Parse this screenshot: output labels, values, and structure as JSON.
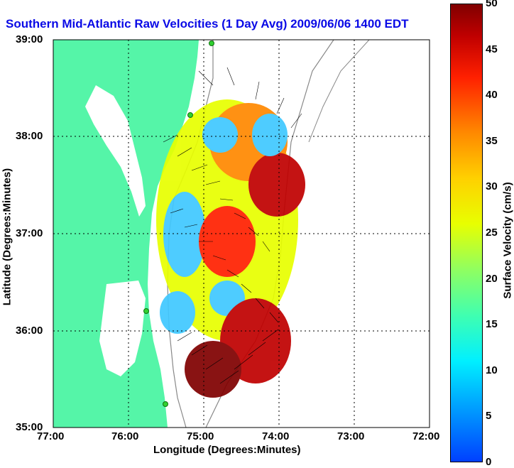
{
  "title": "Southern Mid-Atlantic Raw Velocities (1 Day Avg) 2009/06/06 1400 EDT",
  "x_axis": {
    "label": "Longitude (Degrees:Minutes)",
    "ticks": [
      "77:00",
      "76:00",
      "75:00",
      "74:00",
      "73:00",
      "72:00"
    ]
  },
  "y_axis": {
    "label": "Latitude (Degrees:Minutes)",
    "ticks": [
      "39:00",
      "38:00",
      "37:00",
      "36:00",
      "35:00"
    ]
  },
  "colorbar": {
    "label": "Surface Velocity (cm/s)",
    "ticks": [
      "50",
      "45",
      "40",
      "35",
      "30",
      "25",
      "20",
      "15",
      "10",
      "5",
      "0"
    ]
  },
  "colors": {
    "land": "#55f5a8",
    "water": "#ffffff",
    "title": "#0a0ae6"
  }
}
